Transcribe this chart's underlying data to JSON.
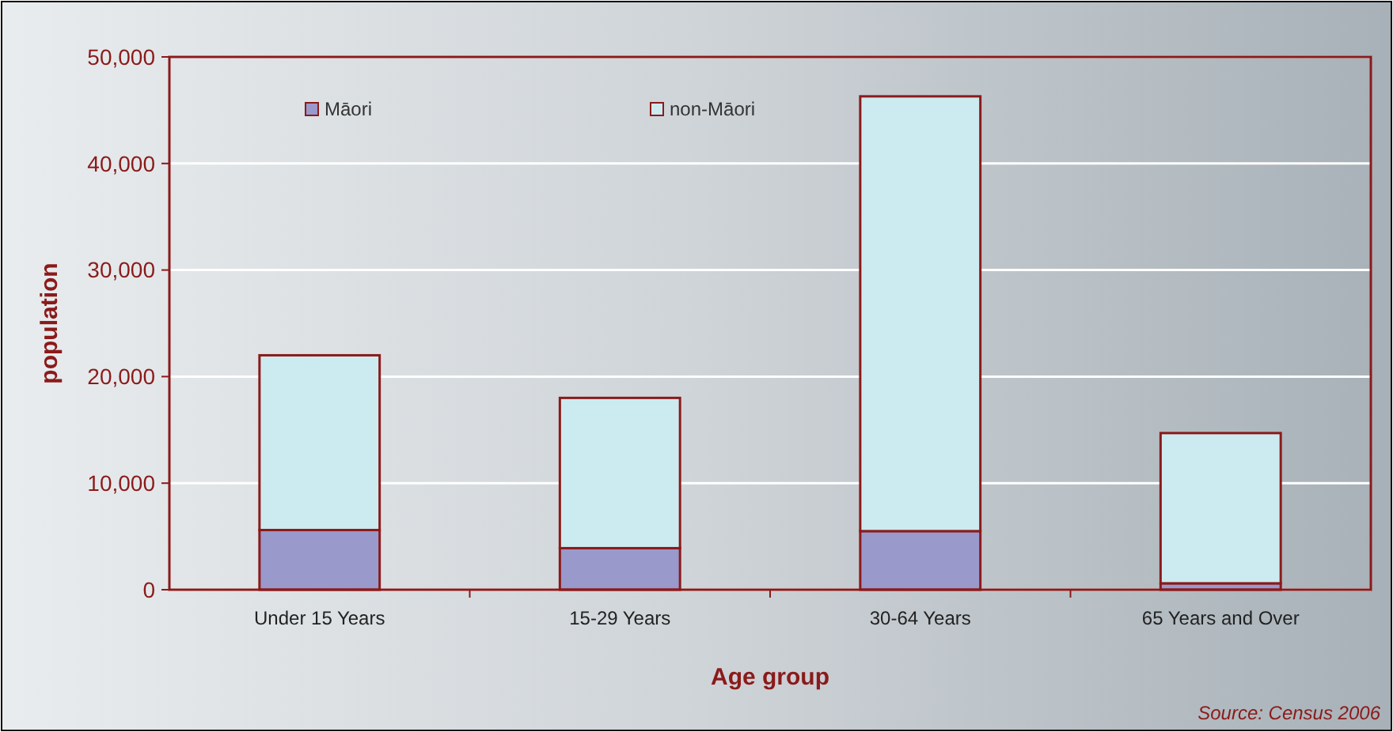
{
  "chart_data": {
    "type": "bar",
    "stacked": true,
    "xlabel": "Age group",
    "ylabel": "population",
    "categories": [
      "Under 15 Years",
      "15-29 Years",
      "30-64 Years",
      "65 Years and Over"
    ],
    "series": [
      {
        "name": "Māori",
        "color": "#9999cc",
        "values": [
          5600,
          3900,
          5500,
          600
        ]
      },
      {
        "name": "non-Māori",
        "color": "#ccebf0",
        "values": [
          16400,
          14100,
          40800,
          14100
        ]
      }
    ],
    "ylim": [
      0,
      50000
    ],
    "yticks": [
      {
        "value": 0,
        "label": "0"
      },
      {
        "value": 10000,
        "label": "10,000"
      },
      {
        "value": 20000,
        "label": "20,000"
      },
      {
        "value": 30000,
        "label": "30,000"
      },
      {
        "value": 40000,
        "label": "40,000"
      },
      {
        "value": 50000,
        "label": "50,000"
      }
    ],
    "grid": "y",
    "legend": "top",
    "annotations": [
      "Source: Census 2006"
    ]
  }
}
